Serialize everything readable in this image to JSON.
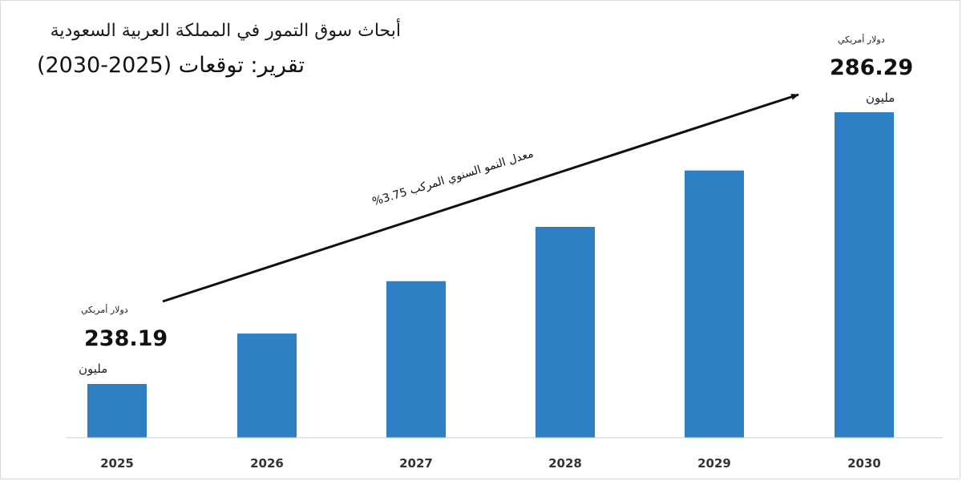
{
  "header": {
    "title": "أبحاث سوق التمور في المملكة العربية السعودية",
    "subtitle": "تقرير: توقعات (2025-2030)"
  },
  "annotations": {
    "start": {
      "currency": "دولار أمريكي",
      "value": "238.19",
      "unit": "مليون"
    },
    "end": {
      "currency": "دولار أمريكي",
      "value": "286.29",
      "unit": "مليون"
    },
    "cagr": "معدل النمو السنوي المركب 3.75%"
  },
  "colors": {
    "bar": "#2e80c4",
    "axis": "#cccccc",
    "arrow": "#111111"
  },
  "chart_data": {
    "type": "bar",
    "categories": [
      "2025",
      "2026",
      "2027",
      "2028",
      "2029",
      "2030"
    ],
    "values": [
      238.19,
      247.12,
      256.39,
      266.0,
      275.98,
      286.29
    ],
    "title": "أبحاث سوق التمور في المملكة العربية السعودية",
    "subtitle": "تقرير: توقعات (2025-2030)",
    "xlabel": "",
    "ylabel": "",
    "grid": false,
    "legend": "none"
  }
}
